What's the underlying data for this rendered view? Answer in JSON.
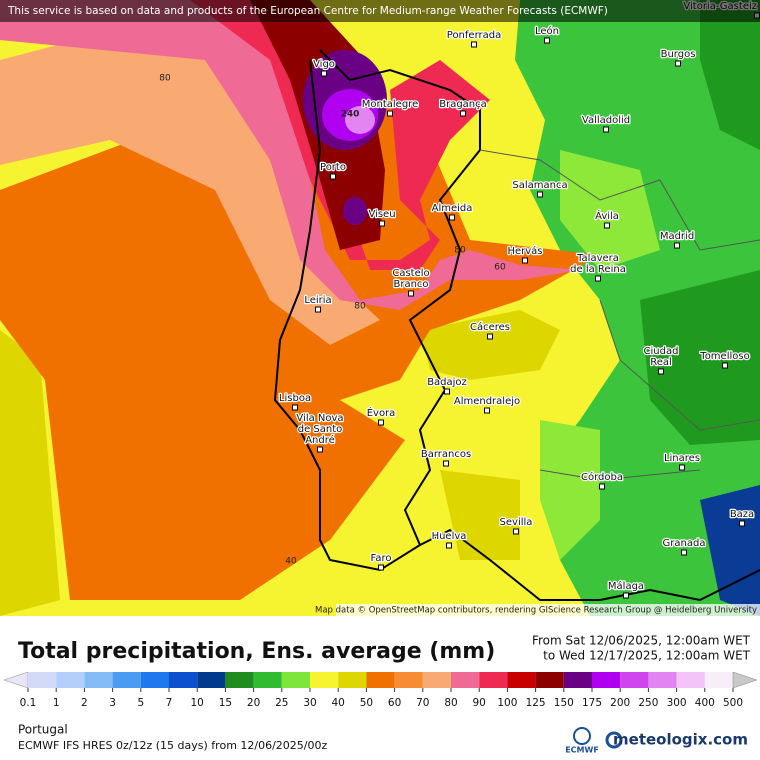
{
  "banner": "This service is based on data and products of the European Centre for Medium-range Weather Forecasts (ECMWF)",
  "attribution": "Map data © OpenStreetMap contributors, rendering GIScience Research Group @ Heidelberg University",
  "cities": [
    {
      "label": [
        "Vitoria-Gasteiz"
      ]
    },
    {
      "label": [
        "Ponferrada"
      ]
    },
    {
      "label": [
        "León"
      ]
    },
    {
      "label": [
        "Burgos"
      ]
    },
    {
      "label": [
        "Vigo"
      ]
    },
    {
      "label": [
        "Montalegre"
      ]
    },
    {
      "label": [
        "Bragança"
      ]
    },
    {
      "label": [
        "Valladolid"
      ]
    },
    {
      "label": [
        "Porto"
      ]
    },
    {
      "label": [
        "Salamanca"
      ]
    },
    {
      "label": [
        "Viseu"
      ]
    },
    {
      "label": [
        "Almeida"
      ]
    },
    {
      "label": [
        "Ávila"
      ]
    },
    {
      "label": [
        "Madrid"
      ]
    },
    {
      "label": [
        "Hervás"
      ]
    },
    {
      "label": [
        "Talavera",
        "de la Reina"
      ]
    },
    {
      "label": [
        "Leiria"
      ]
    },
    {
      "label": [
        "Castelo",
        "Branco"
      ]
    },
    {
      "label": [
        "Cáceres"
      ]
    },
    {
      "label": [
        "Tomelloso"
      ]
    },
    {
      "label": [
        "Ciudad",
        "Real"
      ]
    },
    {
      "label": [
        "Lisboa"
      ]
    },
    {
      "label": [
        "Badajoz"
      ]
    },
    {
      "label": [
        "Almendralejo"
      ]
    },
    {
      "label": [
        "Évora"
      ]
    },
    {
      "label": [
        "Vila Nova",
        "de Santo",
        "André"
      ]
    },
    {
      "label": [
        "Barrancos"
      ]
    },
    {
      "label": [
        "Linares"
      ]
    },
    {
      "label": [
        "Córdoba"
      ]
    },
    {
      "label": [
        "Baza"
      ]
    },
    {
      "label": [
        "Huelva"
      ]
    },
    {
      "label": [
        "Sevilla"
      ]
    },
    {
      "label": [
        "Granada"
      ]
    },
    {
      "label": [
        "Faro"
      ]
    },
    {
      "label": [
        "Málaga"
      ]
    }
  ],
  "contour_labels": [
    "80",
    "240",
    "80",
    "60",
    "80",
    "40"
  ],
  "title": "Total precipitation, Ens. average (mm)",
  "period_from": "From Sat 12/06/2025, 12:00am WET",
  "period_to": "to Wed 12/17/2025, 12:00am WET",
  "legend": {
    "ticks": [
      "0.1",
      "1",
      "2",
      "3",
      "5",
      "7",
      "10",
      "15",
      "20",
      "25",
      "30",
      "40",
      "50",
      "60",
      "70",
      "80",
      "90",
      "100",
      "125",
      "150",
      "175",
      "200",
      "250",
      "300",
      "400",
      "500"
    ],
    "colors": [
      "#e6e6f6",
      "#d2daf8",
      "#b4d0fa",
      "#84bcf8",
      "#4a9cf2",
      "#2078ee",
      "#0c50d0",
      "#003a8c",
      "#1e8c1e",
      "#30bc30",
      "#7ee63a",
      "#f6f430",
      "#ded600",
      "#f07000",
      "#f88c34",
      "#f8aa72",
      "#f06a96",
      "#ee2a52",
      "#c80000",
      "#8c0000",
      "#6a0084",
      "#b000f0",
      "#d044f0",
      "#e284f2",
      "#f2c4f8",
      "#f8eef8",
      "#c8c8c8"
    ]
  },
  "region": "Portugal",
  "model_info": "ECMWF IFS HRES 0z/12z (15 days) from 12/06/2025/00z",
  "logo_ecmwf": "ECMWF",
  "logo_site": "meteologix.com"
}
